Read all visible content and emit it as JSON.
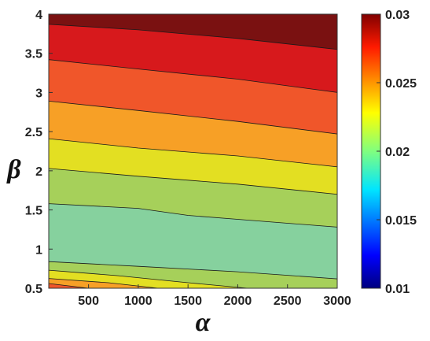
{
  "chart_data": {
    "type": "contour",
    "xlabel": "α",
    "ylabel": "β",
    "xlim": [
      100,
      3000
    ],
    "ylim": [
      0.5,
      4
    ],
    "x_ticks": [
      "500",
      "1000",
      "1500",
      "2000",
      "2500",
      "3000"
    ],
    "y_ticks": [
      "0.5",
      "1",
      "1.5",
      "2",
      "2.5",
      "3",
      "3.5",
      "4"
    ],
    "colorbar": {
      "range": [
        0.01,
        0.03
      ],
      "ticks": [
        "0.01",
        "0.015",
        "0.02",
        "0.025",
        "0.03"
      ],
      "colormap": "jet"
    },
    "contour_boundaries": [
      {
        "level": 0.028,
        "points": [
          [
            100,
            3.87
          ],
          [
            1000,
            3.8
          ],
          [
            2000,
            3.69
          ],
          [
            3000,
            3.55
          ]
        ]
      },
      {
        "level": 0.026,
        "points": [
          [
            100,
            3.42
          ],
          [
            1000,
            3.3
          ],
          [
            2000,
            3.17
          ],
          [
            3000,
            3.0
          ]
        ]
      },
      {
        "level": 0.024,
        "points": [
          [
            100,
            2.89
          ],
          [
            1000,
            2.77
          ],
          [
            2000,
            2.63
          ],
          [
            3000,
            2.47
          ]
        ]
      },
      {
        "level": 0.022,
        "points": [
          [
            100,
            2.41
          ],
          [
            1000,
            2.29
          ],
          [
            2000,
            2.19
          ],
          [
            3000,
            2.05
          ]
        ]
      },
      {
        "level": 0.02,
        "points": [
          [
            100,
            2.03
          ],
          [
            1000,
            1.93
          ],
          [
            2000,
            1.83
          ],
          [
            3000,
            1.7
          ]
        ]
      },
      {
        "level": 0.018,
        "points": [
          [
            100,
            1.58
          ],
          [
            1000,
            1.52
          ],
          [
            1500,
            1.43
          ],
          [
            2000,
            1.38
          ],
          [
            3000,
            1.28
          ]
        ]
      },
      {
        "level": 0.02,
        "points": [
          [
            100,
            0.84
          ],
          [
            1000,
            0.78
          ],
          [
            2000,
            0.71
          ],
          [
            3000,
            0.62
          ]
        ]
      },
      {
        "level": 0.022,
        "points": [
          [
            100,
            0.73
          ],
          [
            800,
            0.66
          ],
          [
            1500,
            0.57
          ],
          [
            2100,
            0.5
          ]
        ]
      },
      {
        "level": 0.024,
        "points": [
          [
            100,
            0.625
          ],
          [
            700,
            0.57
          ],
          [
            1200,
            0.5
          ]
        ]
      },
      {
        "level": 0.026,
        "points": [
          [
            100,
            0.56
          ],
          [
            500,
            0.5
          ]
        ]
      }
    ],
    "band_colors": [
      "#7a1111",
      "#d7191c",
      "#f0562a",
      "#f7a026",
      "#e3df22",
      "#a6d05a",
      "#86d19e",
      "#a6d05a",
      "#e3df22",
      "#f7a026",
      "#f0562a"
    ]
  }
}
